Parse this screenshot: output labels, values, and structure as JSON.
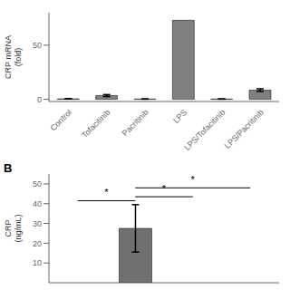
{
  "chart_data": [
    {
      "type": "bar",
      "categories": [
        "Control",
        "Tofacitinib",
        "Pacritinib",
        "LPS",
        "LPS/Tofacitinib",
        "LPS/Pacritinib"
      ],
      "values": [
        0.5,
        3.5,
        0.3,
        73.0,
        0.3,
        8.5
      ],
      "errors": [
        0.15,
        0.9,
        0.1,
        0.0,
        0.1,
        1.2
      ],
      "color": "#808080",
      "ylabel": "CRP mRNA\n(fold)",
      "ylim": [
        -2,
        80
      ],
      "yticks": [
        0,
        50
      ]
    },
    {
      "type": "bar",
      "title": "B",
      "categories": [
        null,
        null,
        null,
        null
      ],
      "values": [
        null,
        27.5,
        null,
        null
      ],
      "errors": [
        null,
        12.0,
        null,
        null
      ],
      "color": "#707070",
      "ylabel": "CRP\n(ng/mL)",
      "ylim": [
        0,
        55
      ],
      "yticks": [
        10,
        20,
        30,
        40,
        50
      ],
      "tick_labels": "y",
      "annotations": [
        {
          "x1": 0,
          "x2": 1,
          "y": 41.5,
          "label": "*"
        },
        {
          "x1": 1,
          "x2": 2,
          "y": 43.5,
          "label": "*"
        },
        {
          "x1": 1,
          "x2": 3,
          "y": 48.0,
          "label": "*"
        }
      ]
    }
  ]
}
